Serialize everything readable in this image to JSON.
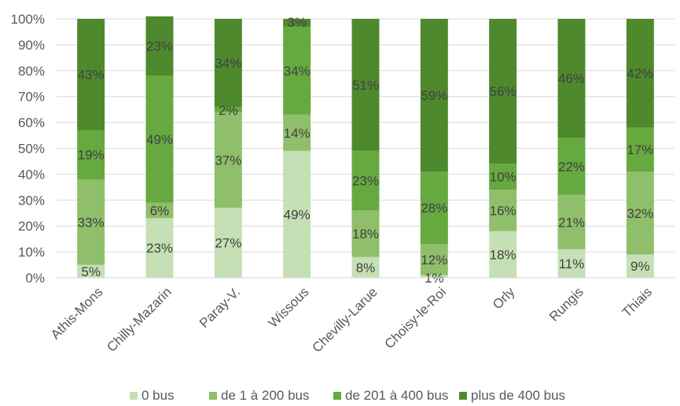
{
  "chart_data": {
    "type": "bar",
    "stacked": true,
    "percent_stacked": true,
    "categories": [
      "Athis-Mons",
      "Chilly-Mazarin",
      "Paray-V.",
      "Wissous",
      "Chevilly-Larue",
      "Choisy-le-Roi",
      "Orly",
      "Rungis",
      "Thiais"
    ],
    "series": [
      {
        "name": "0 bus",
        "color": "#c5e0b4",
        "values": [
          5,
          23,
          27,
          49,
          8,
          1,
          18,
          11,
          9
        ],
        "labels": [
          "5%",
          "23%",
          "27%",
          "49%",
          "8%",
          "1%",
          "18%",
          "11%",
          "9%"
        ]
      },
      {
        "name": "de 1 à 200 bus",
        "color": "#8fbf6a",
        "values": [
          33,
          6,
          37,
          14,
          18,
          12,
          16,
          21,
          32
        ],
        "labels": [
          "33%",
          "6%",
          "37%",
          "14%",
          "18%",
          "12%",
          "16%",
          "21%",
          "32%"
        ]
      },
      {
        "name": "de 201 à 400 bus",
        "color": "#66a93f",
        "values": [
          19,
          49,
          2,
          34,
          23,
          28,
          10,
          22,
          17
        ],
        "labels": [
          "19%",
          "49%",
          "2%",
          "34%",
          "23%",
          "28%",
          "10%",
          "22%",
          "17%"
        ]
      },
      {
        "name": "plus de 400 bus",
        "color": "#4e8a2d",
        "values": [
          43,
          23,
          34,
          3,
          51,
          59,
          56,
          46,
          42
        ],
        "labels": [
          "43%",
          "23%",
          "34%",
          "3%",
          "51%",
          "59%",
          "56%",
          "46%",
          "42%"
        ]
      }
    ],
    "yticks": [
      "0%",
      "10%",
      "20%",
      "30%",
      "40%",
      "50%",
      "60%",
      "70%",
      "80%",
      "90%",
      "100%"
    ],
    "ylim": [
      0,
      100
    ],
    "grid": true,
    "legend_position": "bottom",
    "title": "",
    "xlabel": "",
    "ylabel": ""
  }
}
